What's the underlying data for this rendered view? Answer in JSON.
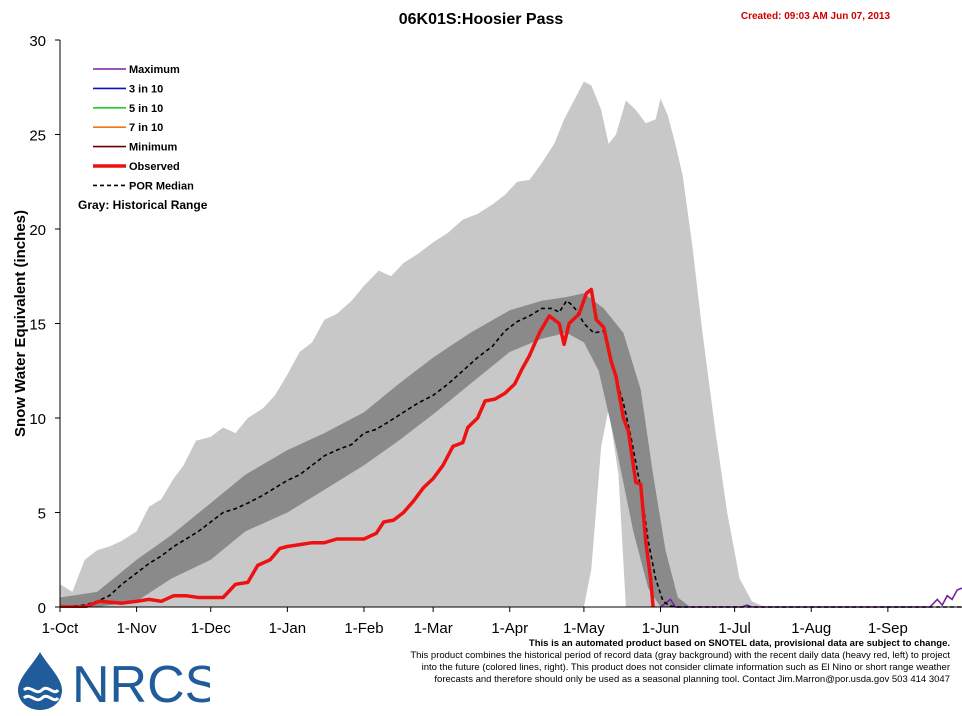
{
  "title": "06K01S:Hoosier Pass",
  "created": "Created: 09:03 AM Jun 07, 2013",
  "disclaimer": {
    "lead": "This is an automated product based on SNOTEL data, provisional data are subject to change.",
    "lines": [
      "This product combines the historical period of record data (gray background) with the recent daily data (heavy red, left) to project",
      "into the future (colored lines, right). This product does not consider climate information such as El Nino or short range weather",
      "forecasts and therefore should only be used as a seasonal planning tool. Contact Jim.Marron@por.usda.gov 503 414 3047"
    ]
  },
  "logo": {
    "text": "NRCS",
    "icon": "water-drop-logo-icon",
    "color": "#1f5c99"
  },
  "colors": {
    "maximum": "#7b1fa2",
    "three_in_ten": "#1010c0",
    "five_in_ten": "#22cc22",
    "seven_in_ten": "#ee7711",
    "minimum": "#6a0000",
    "observed": "#ee1111",
    "median": "#000000",
    "range_outer": "#c8c8c8",
    "range_inner": "#8a8a8a"
  },
  "chart_data": {
    "type": "area",
    "title": "06K01S:Hoosier Pass",
    "ylabel": "Snow Water Equivalent (inches)",
    "xlabel": "",
    "ylim": [
      0,
      30
    ],
    "yticks": [
      0,
      5,
      10,
      15,
      20,
      25,
      30
    ],
    "x_start": "1-Oct",
    "x_days": 365,
    "xticks": [
      {
        "label": "1-Oct",
        "day": 0
      },
      {
        "label": "1-Nov",
        "day": 31
      },
      {
        "label": "1-Dec",
        "day": 61
      },
      {
        "label": "1-Jan",
        "day": 92
      },
      {
        "label": "1-Feb",
        "day": 123
      },
      {
        "label": "1-Mar",
        "day": 151
      },
      {
        "label": "1-Apr",
        "day": 182
      },
      {
        "label": "1-May",
        "day": 212
      },
      {
        "label": "1-Jun",
        "day": 243
      },
      {
        "label": "1-Jul",
        "day": 273
      },
      {
        "label": "1-Aug",
        "day": 304
      },
      {
        "label": "1-Sep",
        "day": 335
      }
    ],
    "grid": false,
    "legend_position": "top-left",
    "legend": [
      {
        "label": "Maximum",
        "key": "maximum",
        "style": "solid"
      },
      {
        "label": "3 in 10",
        "key": "three_in_ten",
        "style": "solid"
      },
      {
        "label": "5 in 10",
        "key": "five_in_ten",
        "style": "solid"
      },
      {
        "label": "7 in 10",
        "key": "seven_in_ten",
        "style": "solid"
      },
      {
        "label": "Minimum",
        "key": "minimum",
        "style": "solid"
      },
      {
        "label": "Observed",
        "key": "observed",
        "style": "thick"
      },
      {
        "label": "POR Median",
        "key": "median",
        "style": "dashed"
      }
    ],
    "range_note": "Gray: Historical Range",
    "historical_max": [
      [
        0,
        1.2
      ],
      [
        5,
        0.8
      ],
      [
        10,
        2.5
      ],
      [
        15,
        3
      ],
      [
        20,
        3.2
      ],
      [
        25,
        3.5
      ],
      [
        31,
        4
      ],
      [
        36,
        5.3
      ],
      [
        41,
        5.7
      ],
      [
        46,
        6.8
      ],
      [
        50,
        7.5
      ],
      [
        55,
        8.8
      ],
      [
        61,
        9
      ],
      [
        66,
        9.5
      ],
      [
        71,
        9.2
      ],
      [
        76,
        10
      ],
      [
        82,
        10.5
      ],
      [
        87,
        11.2
      ],
      [
        92,
        12.3
      ],
      [
        97,
        13.5
      ],
      [
        102,
        14
      ],
      [
        107,
        15.2
      ],
      [
        112,
        15.5
      ],
      [
        118,
        16.2
      ],
      [
        123,
        17
      ],
      [
        129,
        17.8
      ],
      [
        134,
        17.5
      ],
      [
        139,
        18.2
      ],
      [
        145,
        18.7
      ],
      [
        151,
        19.3
      ],
      [
        157,
        19.8
      ],
      [
        163,
        20.5
      ],
      [
        169,
        20.8
      ],
      [
        175,
        21.3
      ],
      [
        180,
        21.8
      ],
      [
        185,
        22.5
      ],
      [
        190,
        22.6
      ],
      [
        195,
        23.5
      ],
      [
        200,
        24.5
      ],
      [
        204,
        25.8
      ],
      [
        208,
        26.8
      ],
      [
        212,
        27.8
      ],
      [
        215,
        27.6
      ],
      [
        219,
        26.3
      ],
      [
        222,
        24.5
      ],
      [
        225,
        25
      ],
      [
        229,
        26.8
      ],
      [
        233,
        26.3
      ],
      [
        237,
        25.6
      ],
      [
        241,
        25.8
      ],
      [
        243,
        26.9
      ],
      [
        246,
        26
      ],
      [
        249,
        24.5
      ],
      [
        252,
        22.8
      ],
      [
        256,
        19
      ],
      [
        260,
        14.5
      ],
      [
        265,
        9.5
      ],
      [
        270,
        5
      ],
      [
        275,
        1.5
      ],
      [
        280,
        0.3
      ],
      [
        285,
        0
      ],
      [
        365,
        0
      ]
    ],
    "historical_min": [
      [
        0,
        0
      ],
      [
        212,
        0
      ],
      [
        215,
        2
      ],
      [
        219,
        8.5
      ],
      [
        222,
        10.5
      ],
      [
        226,
        7
      ],
      [
        229,
        0
      ],
      [
        365,
        0
      ]
    ],
    "inner_upper": [
      [
        0,
        0.5
      ],
      [
        15,
        0.8
      ],
      [
        31,
        2.5
      ],
      [
        45,
        3.8
      ],
      [
        61,
        5.5
      ],
      [
        75,
        7
      ],
      [
        92,
        8.3
      ],
      [
        107,
        9.2
      ],
      [
        123,
        10.3
      ],
      [
        137,
        11.8
      ],
      [
        151,
        13.2
      ],
      [
        166,
        14.5
      ],
      [
        182,
        15.7
      ],
      [
        195,
        16.2
      ],
      [
        205,
        16.4
      ],
      [
        212,
        16.6
      ],
      [
        220,
        15.8
      ],
      [
        228,
        14.5
      ],
      [
        235,
        11.5
      ],
      [
        240,
        7
      ],
      [
        245,
        3
      ],
      [
        250,
        0.5
      ],
      [
        255,
        0
      ],
      [
        365,
        0
      ]
    ],
    "inner_lower": [
      [
        0,
        0
      ],
      [
        15,
        0
      ],
      [
        31,
        0.3
      ],
      [
        45,
        1.5
      ],
      [
        61,
        2.5
      ],
      [
        75,
        4
      ],
      [
        92,
        5
      ],
      [
        107,
        6.2
      ],
      [
        123,
        7.5
      ],
      [
        137,
        8.8
      ],
      [
        151,
        10.2
      ],
      [
        166,
        11.8
      ],
      [
        182,
        13.5
      ],
      [
        195,
        14.2
      ],
      [
        205,
        14.5
      ],
      [
        212,
        14
      ],
      [
        218,
        12.5
      ],
      [
        225,
        8.5
      ],
      [
        232,
        4
      ],
      [
        238,
        1
      ],
      [
        243,
        0
      ],
      [
        365,
        0
      ]
    ],
    "por_median": [
      [
        0,
        0
      ],
      [
        10,
        0.1
      ],
      [
        15,
        0.3
      ],
      [
        20,
        0.6
      ],
      [
        25,
        1.2
      ],
      [
        31,
        1.8
      ],
      [
        36,
        2.3
      ],
      [
        41,
        2.7
      ],
      [
        46,
        3.2
      ],
      [
        51,
        3.6
      ],
      [
        56,
        4
      ],
      [
        61,
        4.5
      ],
      [
        66,
        5
      ],
      [
        71,
        5.2
      ],
      [
        76,
        5.5
      ],
      [
        82,
        5.9
      ],
      [
        87,
        6.3
      ],
      [
        92,
        6.7
      ],
      [
        97,
        7
      ],
      [
        102,
        7.5
      ],
      [
        107,
        8
      ],
      [
        112,
        8.3
      ],
      [
        118,
        8.6
      ],
      [
        123,
        9.2
      ],
      [
        128,
        9.4
      ],
      [
        133,
        9.8
      ],
      [
        139,
        10.3
      ],
      [
        145,
        10.8
      ],
      [
        151,
        11.2
      ],
      [
        157,
        11.8
      ],
      [
        163,
        12.5
      ],
      [
        169,
        13.2
      ],
      [
        175,
        13.8
      ],
      [
        180,
        14.6
      ],
      [
        185,
        15.1
      ],
      [
        190,
        15.4
      ],
      [
        195,
        15.8
      ],
      [
        199,
        15.8
      ],
      [
        202,
        15.6
      ],
      [
        205,
        16.2
      ],
      [
        207,
        16
      ],
      [
        209,
        15.7
      ],
      [
        212,
        15
      ],
      [
        216,
        14.5
      ],
      [
        220,
        14.6
      ],
      [
        224,
        12.5
      ],
      [
        228,
        10.8
      ],
      [
        231,
        9
      ],
      [
        235,
        6.3
      ],
      [
        238,
        3.5
      ],
      [
        241,
        1.5
      ],
      [
        244,
        0.3
      ],
      [
        247,
        0.05
      ],
      [
        250,
        0
      ],
      [
        365,
        0
      ]
    ],
    "observed": [
      [
        0,
        0
      ],
      [
        10,
        0
      ],
      [
        16,
        0.3
      ],
      [
        25,
        0.2
      ],
      [
        31,
        0.3
      ],
      [
        36,
        0.4
      ],
      [
        41,
        0.3
      ],
      [
        46,
        0.6
      ],
      [
        51,
        0.6
      ],
      [
        56,
        0.5
      ],
      [
        61,
        0.5
      ],
      [
        66,
        0.5
      ],
      [
        71,
        1.2
      ],
      [
        76,
        1.3
      ],
      [
        80,
        2.2
      ],
      [
        85,
        2.5
      ],
      [
        89,
        3.1
      ],
      [
        92,
        3.2
      ],
      [
        97,
        3.3
      ],
      [
        102,
        3.4
      ],
      [
        107,
        3.4
      ],
      [
        112,
        3.6
      ],
      [
        118,
        3.6
      ],
      [
        123,
        3.6
      ],
      [
        128,
        3.9
      ],
      [
        131,
        4.5
      ],
      [
        135,
        4.6
      ],
      [
        139,
        5
      ],
      [
        143,
        5.6
      ],
      [
        147,
        6.3
      ],
      [
        151,
        6.8
      ],
      [
        155,
        7.5
      ],
      [
        159,
        8.5
      ],
      [
        163,
        8.7
      ],
      [
        165,
        9.5
      ],
      [
        169,
        10
      ],
      [
        172,
        10.9
      ],
      [
        176,
        11
      ],
      [
        180,
        11.3
      ],
      [
        184,
        11.8
      ],
      [
        187,
        12.6
      ],
      [
        190,
        13.3
      ],
      [
        194,
        14.5
      ],
      [
        198,
        15.4
      ],
      [
        202,
        15
      ],
      [
        204,
        13.9
      ],
      [
        206,
        15
      ],
      [
        210,
        15.5
      ],
      [
        213,
        16.6
      ],
      [
        215,
        16.8
      ],
      [
        217,
        15.2
      ],
      [
        220,
        14.8
      ],
      [
        223,
        13
      ],
      [
        225,
        12.2
      ],
      [
        228,
        10
      ],
      [
        230,
        9.3
      ],
      [
        233,
        6.6
      ],
      [
        235,
        6.5
      ],
      [
        237,
        3.5
      ],
      [
        239,
        1.5
      ],
      [
        240,
        0
      ]
    ],
    "maximum_forecast": [
      [
        243,
        0
      ],
      [
        247,
        0.4
      ],
      [
        249,
        0
      ],
      [
        276,
        0
      ],
      [
        278,
        0.1
      ],
      [
        280,
        0
      ],
      [
        352,
        0
      ],
      [
        355,
        0.4
      ],
      [
        357,
        0.1
      ],
      [
        359,
        0.6
      ],
      [
        361,
        0.4
      ],
      [
        363,
        0.9
      ],
      [
        365,
        1
      ]
    ]
  }
}
